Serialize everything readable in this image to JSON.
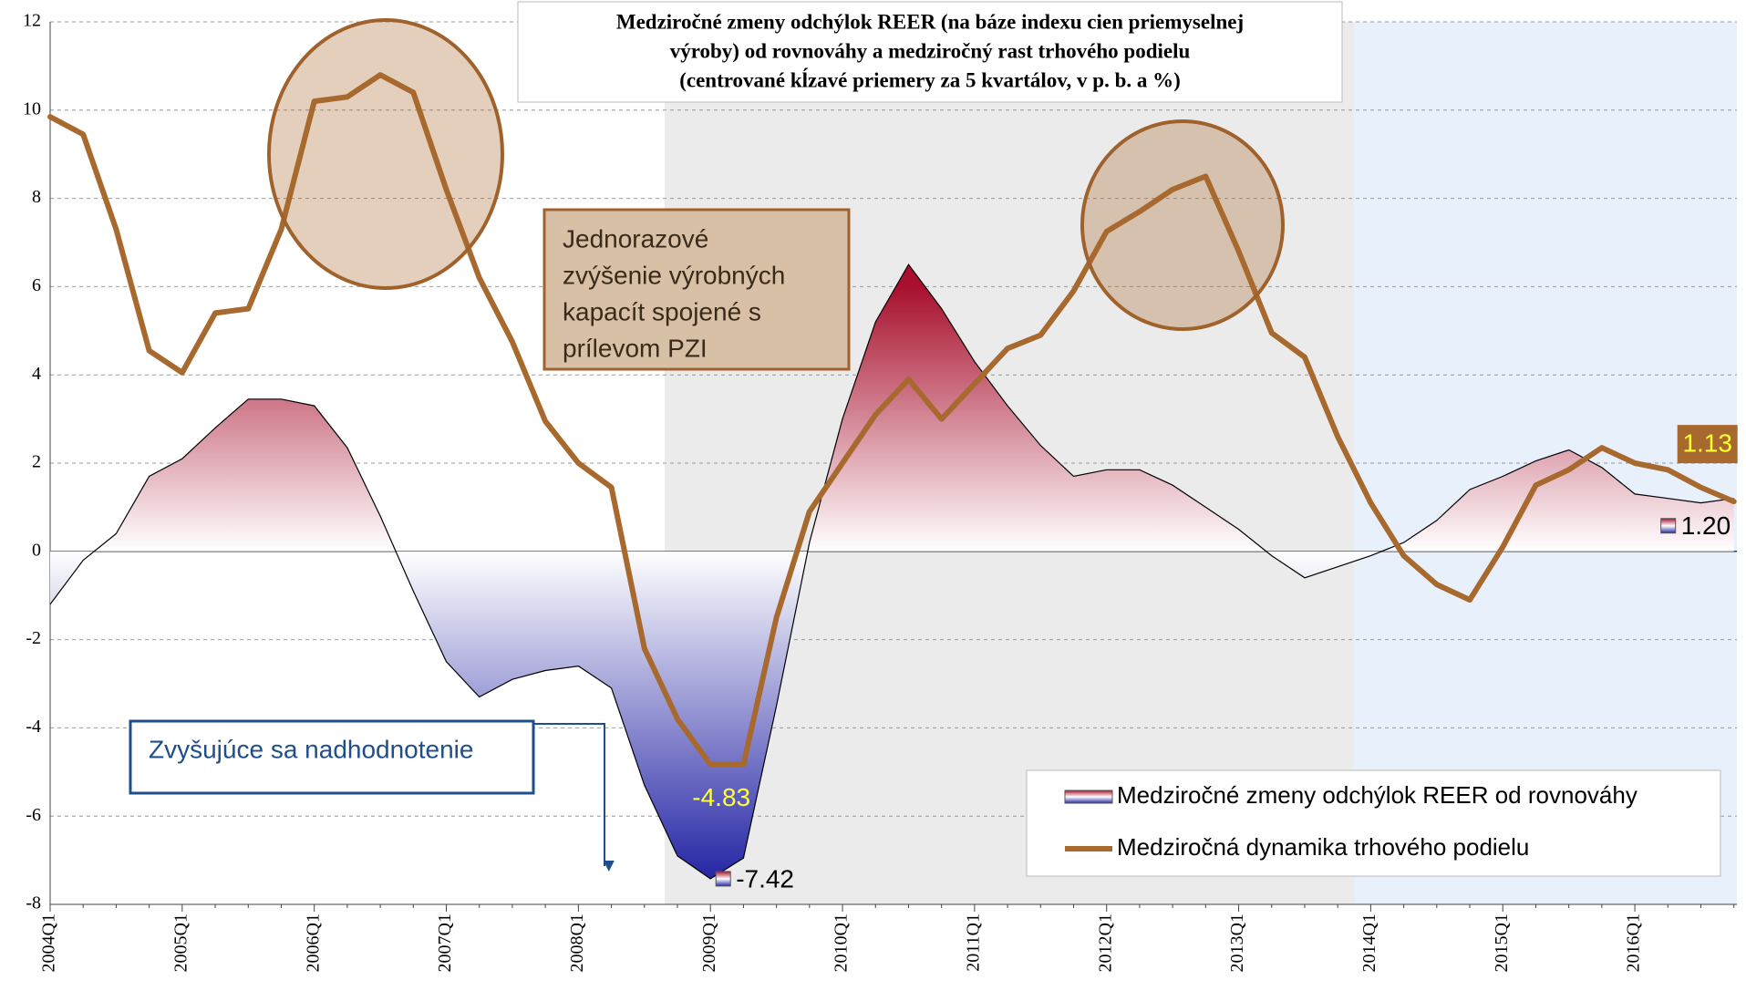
{
  "chart_data": {
    "type": "area_line",
    "title": [
      "Medziročné zmeny odchýlok REER  (na báze indexu cien priemyselnej",
      "výroby) od rovnováhy a medziročný rast trhového podielu",
      "(centrované kĺzavé priemery za 5 kvartálov, v  p. b. a %)"
    ],
    "categories": [
      "2004Q1",
      null,
      null,
      null,
      "2005Q1",
      null,
      null,
      null,
      "2006Q1",
      null,
      null,
      null,
      "2007Q1",
      null,
      null,
      null,
      "2008Q1",
      null,
      null,
      null,
      "2009Q1",
      null,
      null,
      null,
      "2010Q1",
      null,
      null,
      null,
      "2011Q1",
      null,
      null,
      null,
      "2012Q1",
      null,
      null,
      null,
      "2013Q1",
      null,
      null,
      null,
      "2014Q1",
      null,
      null,
      null,
      "2015Q1",
      null,
      null,
      null,
      "2016Q1",
      null,
      null,
      null
    ],
    "series": [
      {
        "name": "Medziročné zmeny odchýlok REER od rovnováhy",
        "kind": "area",
        "color": "#a8102e",
        "negative_color": "#2626a6",
        "values": [
          -1.2,
          -0.2,
          0.4,
          1.7,
          2.1,
          2.8,
          3.45,
          3.45,
          3.3,
          2.35,
          0.8,
          -0.9,
          -2.5,
          -3.3,
          -2.9,
          -2.7,
          -2.6,
          -3.1,
          -5.3,
          -6.9,
          -7.42,
          -6.95,
          -3.5,
          0.2,
          3.0,
          5.2,
          6.5,
          5.5,
          4.3,
          3.3,
          2.4,
          1.7,
          1.85,
          1.85,
          1.5,
          1.0,
          0.5,
          -0.1,
          -0.6,
          -0.35,
          -0.1,
          0.2,
          0.7,
          1.4,
          1.7,
          2.05,
          2.3,
          1.9,
          1.3,
          1.2,
          1.1,
          1.2
        ],
        "value_labels": [
          null,
          null,
          null,
          null,
          null,
          null,
          null,
          null,
          null,
          null,
          null,
          null,
          null,
          null,
          null,
          null,
          null,
          null,
          null,
          null,
          "-7.42",
          null,
          null,
          null,
          null,
          null,
          null,
          null,
          null,
          null,
          null,
          null,
          null,
          null,
          null,
          null,
          null,
          null,
          null,
          null,
          null,
          null,
          null,
          null,
          null,
          null,
          null,
          null,
          null,
          null,
          null,
          "1.20"
        ]
      },
      {
        "name": "Medziročná dynamika trhového podielu",
        "kind": "line",
        "color": "#a8692f",
        "values": [
          9.85,
          9.45,
          7.3,
          4.55,
          4.05,
          5.4,
          5.5,
          7.3,
          10.2,
          10.3,
          10.8,
          10.4,
          8.2,
          6.2,
          4.75,
          2.95,
          2.0,
          1.45,
          -2.2,
          -3.8,
          -4.83,
          -4.83,
          -1.5,
          0.9,
          2.0,
          3.1,
          3.9,
          3.0,
          3.8,
          4.6,
          4.9,
          5.9,
          7.25,
          7.7,
          8.2,
          8.5,
          6.8,
          4.95,
          4.4,
          2.6,
          1.1,
          -0.1,
          -0.75,
          -1.1,
          0.1,
          1.5,
          1.85,
          2.35,
          2.0,
          1.85,
          1.45,
          1.13
        ],
        "value_labels": [
          null,
          null,
          null,
          null,
          null,
          null,
          null,
          null,
          null,
          null,
          null,
          null,
          null,
          null,
          null,
          null,
          null,
          null,
          null,
          null,
          "-4.83",
          null,
          null,
          null,
          null,
          null,
          null,
          null,
          null,
          null,
          null,
          null,
          null,
          null,
          null,
          null,
          null,
          null,
          null,
          null,
          null,
          null,
          null,
          null,
          null,
          null,
          null,
          null,
          null,
          null,
          null,
          "1.13"
        ]
      }
    ],
    "ylim": [
      -8,
      12
    ],
    "yticks": [
      -8,
      -6,
      -4,
      -2,
      0,
      2,
      4,
      6,
      8,
      10,
      12
    ],
    "grid": true,
    "legend": "bottom-right",
    "annotations": [
      {
        "text": [
          "Jednorazové",
          "zvýšenie výrobných",
          "kapacít spojené s",
          "prílevom PZI"
        ]
      },
      {
        "text": "Zvyšujúce sa nadhodnotenie"
      }
    ]
  }
}
